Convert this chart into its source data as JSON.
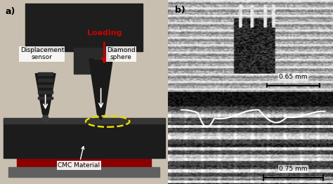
{
  "fig_width": 4.74,
  "fig_height": 2.62,
  "dpi": 100,
  "panel_a": {
    "label": "a)",
    "loading_text": "Loading",
    "displacement_sensor_label": "Displacement\nsensor",
    "diamond_sphere_label": "Diamond\nsphere",
    "cmc_label": "CMC Material"
  },
  "panel_b": {
    "label": "b)",
    "scalebar_text": "0.65 mm"
  },
  "panel_c": {
    "label": "c)",
    "scalebar_text": "0.75 mm"
  },
  "font_size_label": 9,
  "font_size_text": 7,
  "font_size_scalebar": 6.5
}
